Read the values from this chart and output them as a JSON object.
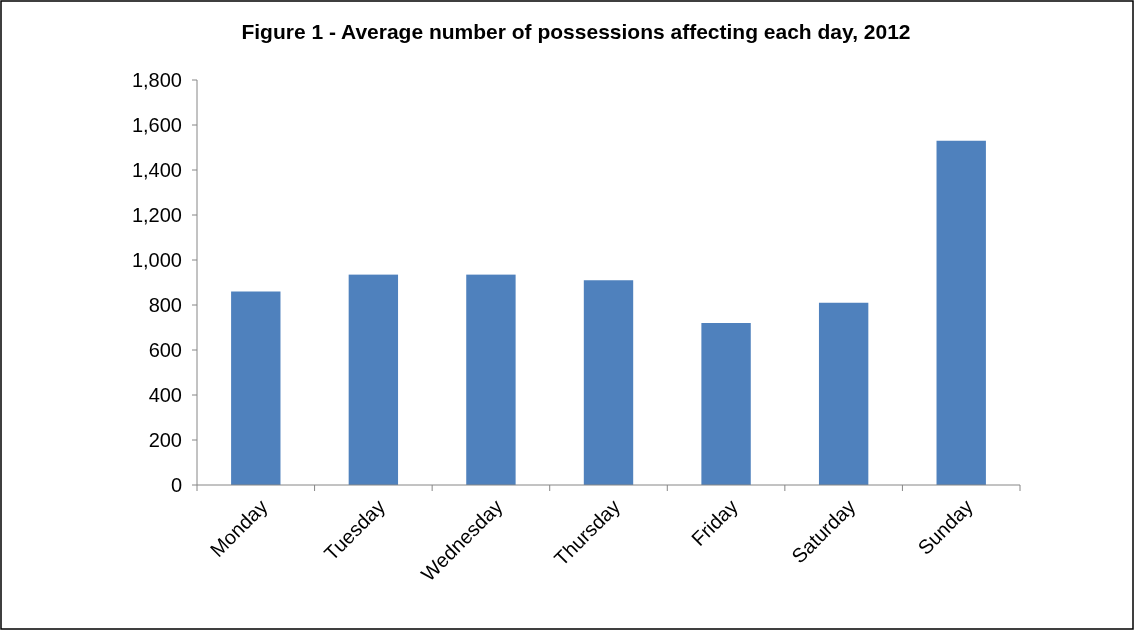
{
  "chart_data": {
    "type": "bar",
    "title": "Figure 1 - Average number of possessions affecting each day, 2012",
    "categories": [
      "Monday",
      "Tuesday",
      "Wednesday",
      "Thursday",
      "Friday",
      "Saturday",
      "Sunday"
    ],
    "values": [
      860,
      935,
      935,
      910,
      720,
      810,
      1530
    ],
    "color": "#4f81bd",
    "ylim": [
      0,
      1800
    ],
    "yticks": [
      {
        "value": 0,
        "label": "0"
      },
      {
        "value": 200,
        "label": "200"
      },
      {
        "value": 400,
        "label": "400"
      },
      {
        "value": 600,
        "label": "600"
      },
      {
        "value": 800,
        "label": "800"
      },
      {
        "value": 1000,
        "label": "1,000"
      },
      {
        "value": 1200,
        "label": "1,200"
      },
      {
        "value": 1400,
        "label": "1,400"
      },
      {
        "value": 1600,
        "label": "1,600"
      },
      {
        "value": 1800,
        "label": "1,800"
      }
    ],
    "grid": false
  }
}
